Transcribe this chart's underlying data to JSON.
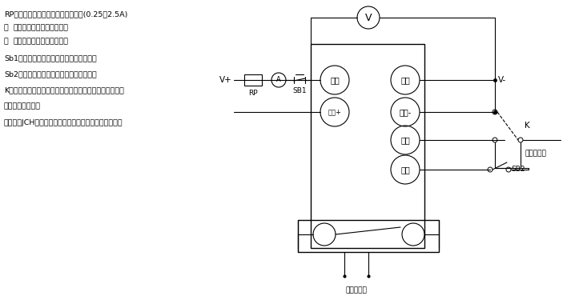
{
  "bg_color": "#ffffff",
  "line_color": "#000000",
  "text_color": "#000000",
  "figsize": [
    7.33,
    3.75
  ],
  "dpi": 100,
  "annotations": {
    "line1": "RP为大功率滑成变阻器用来调节电流(0.25～2.5A)",
    "line2a": "Ⓐ",
    "line2b": "为安培表用来监视合闸电流",
    "line3a": "Ⓥ",
    "line3b": "为电压表用来监视额定电压",
    "line4": "Sb1为常闭按钮，用来复位合闸保持电流。",
    "line5": "Sb2为常开按钮，用来测试放电闭锁功能。",
    "line6": "K为刀开关或同一继电器的两付同时动作的常开触点，用来",
    "line7": "控制延时的启动。",
    "line8": "另有一付JCH常开触点接秒表停止，用来停止秒表计时。"
  },
  "labels": {
    "V_plus": "V+",
    "V_minus": "V-",
    "RP": "RP",
    "SB1": "SB1",
    "chonghe": "重合",
    "dianyuan_plus": "电源+",
    "hejian": "合闸",
    "dianyuan_minus": "电源-",
    "qidong": "启动",
    "fangdian": "放电",
    "SB2": "SB2",
    "K": "K",
    "jiemiaobiao_qidong": "接秒表启动",
    "jiemiaobiao_tingzhi": "接秒表停止"
  }
}
